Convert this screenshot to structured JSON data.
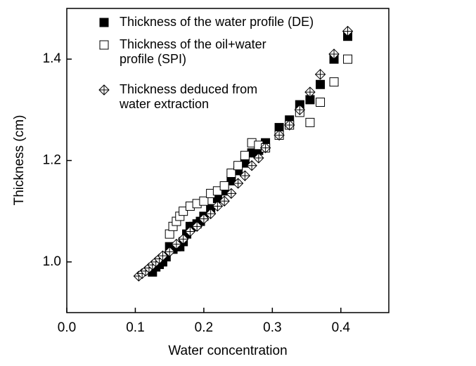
{
  "chart_data": {
    "type": "scatter",
    "x_label": "Water concentration",
    "y_label": "Thickness (cm)",
    "xlim": [
      0,
      0.47
    ],
    "ylim": [
      0.9,
      1.5
    ],
    "xticks": [
      {
        "value": 0,
        "label": "0.0"
      },
      0.1,
      0.2,
      0.3,
      0.4
    ],
    "yticks": [
      {
        "value": 1,
        "label": "1.0"
      },
      1.2,
      1.4
    ],
    "legend": "upper left",
    "series": [
      {
        "name": "Thickness of the water profile (DE)",
        "color": "#000000",
        "marker": "filled-square",
        "x": [
          0.125,
          0.13,
          0.135,
          0.14,
          0.145,
          0.15,
          0.155,
          0.16,
          0.165,
          0.17,
          0.175,
          0.18,
          0.185,
          0.19,
          0.195,
          0.2,
          0.21,
          0.22,
          0.23,
          0.24,
          0.25,
          0.26,
          0.27,
          0.28,
          0.29,
          0.31,
          0.325,
          0.34,
          0.355,
          0.37,
          0.39,
          0.41
        ],
        "y": [
          0.98,
          0.99,
          0.995,
          1.0,
          1.01,
          1.03,
          1.025,
          1.03,
          1.03,
          1.04,
          1.055,
          1.07,
          1.07,
          1.075,
          1.08,
          1.09,
          1.105,
          1.125,
          1.14,
          1.16,
          1.18,
          1.195,
          1.215,
          1.22,
          1.235,
          1.265,
          1.28,
          1.31,
          1.32,
          1.35,
          1.4,
          1.445
        ]
      },
      {
        "name": "Thickness of the oil+water\nprofile (SPI)",
        "color": "#000000",
        "marker": "open-square",
        "x": [
          0.15,
          0.155,
          0.16,
          0.165,
          0.17,
          0.18,
          0.19,
          0.2,
          0.21,
          0.22,
          0.23,
          0.24,
          0.25,
          0.26,
          0.27,
          0.28,
          0.29,
          0.31,
          0.325,
          0.34,
          0.355,
          0.37,
          0.39,
          0.41
        ],
        "y": [
          1.055,
          1.07,
          1.08,
          1.09,
          1.1,
          1.11,
          1.115,
          1.12,
          1.135,
          1.14,
          1.15,
          1.175,
          1.19,
          1.21,
          1.235,
          1.23,
          1.225,
          1.25,
          1.27,
          1.295,
          1.275,
          1.315,
          1.355,
          1.4
        ]
      },
      {
        "name": "Thickness deduced from\nwater extraction",
        "color": "#000000",
        "marker": "diamond-cross",
        "x": [
          0.105,
          0.11,
          0.115,
          0.12,
          0.125,
          0.13,
          0.135,
          0.14,
          0.15,
          0.16,
          0.17,
          0.18,
          0.19,
          0.2,
          0.21,
          0.22,
          0.23,
          0.24,
          0.25,
          0.26,
          0.27,
          0.28,
          0.29,
          0.31,
          0.325,
          0.34,
          0.355,
          0.37,
          0.39,
          0.41
        ],
        "y": [
          0.972,
          0.977,
          0.982,
          0.988,
          0.994,
          1.0,
          1.006,
          1.012,
          1.02,
          1.035,
          1.045,
          1.06,
          1.07,
          1.085,
          1.095,
          1.11,
          1.12,
          1.135,
          1.155,
          1.17,
          1.19,
          1.205,
          1.225,
          1.25,
          1.27,
          1.3,
          1.335,
          1.37,
          1.41,
          1.455
        ]
      }
    ]
  }
}
